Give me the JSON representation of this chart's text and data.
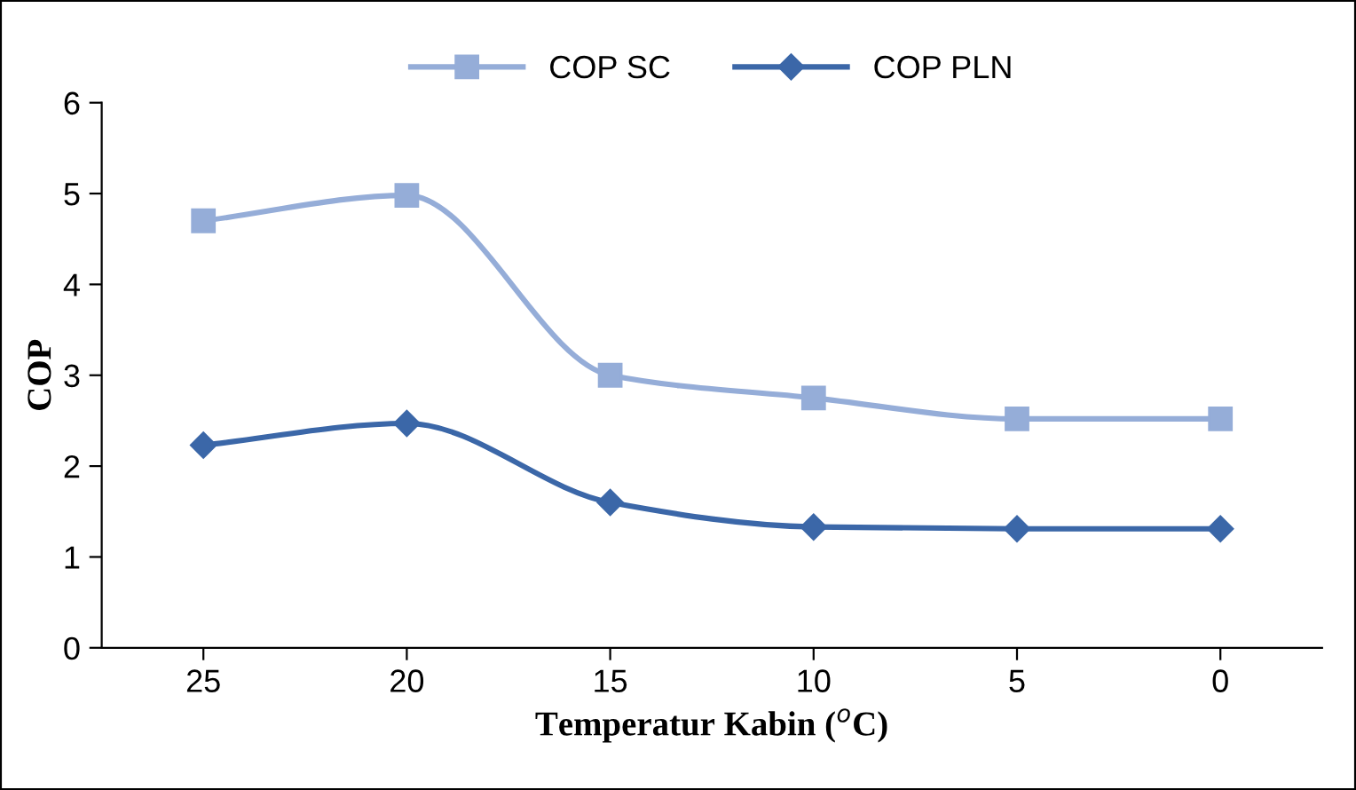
{
  "chart_data": {
    "type": "line",
    "xlabel": "Temperatur Kabin ($^{o}$C)",
    "ylabel": "COP",
    "categories": [
      "25",
      "20",
      "15",
      "10",
      "5",
      "0"
    ],
    "series": [
      {
        "name": "COP SC",
        "color": "#95add8",
        "marker": "square",
        "values": [
          4.7,
          4.98,
          3.0,
          2.75,
          2.52,
          2.52
        ]
      },
      {
        "name": "COP PLN",
        "color": "#3b67a8",
        "marker": "diamond",
        "values": [
          2.23,
          2.47,
          1.6,
          1.33,
          1.31,
          1.31
        ]
      }
    ],
    "ylim": [
      0,
      6
    ],
    "yticks": [
      0,
      1,
      2,
      3,
      4,
      5,
      6
    ],
    "grid": false,
    "legend": "top",
    "line_style": "solid"
  }
}
